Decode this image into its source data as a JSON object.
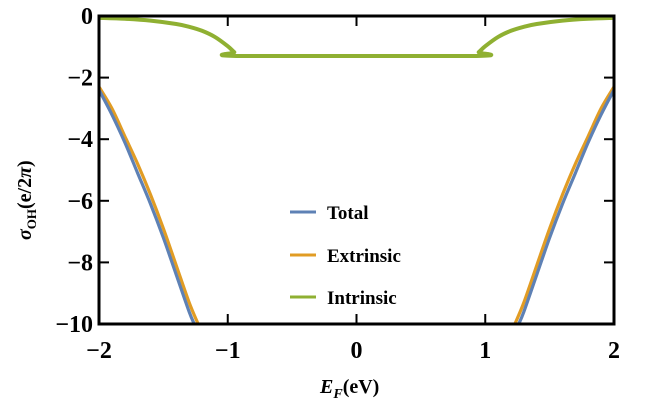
{
  "chart_data": {
    "type": "line",
    "xlabel_main": "E",
    "xlabel_sub": "F",
    "xlabel_unit": "(eV)",
    "ylabel_main": "σ",
    "ylabel_sub": "OH",
    "ylabel_unit": "(e/2",
    "ylabel_pi": "π",
    "ylabel_close": ")",
    "xlim": [
      -2,
      2
    ],
    "ylim": [
      -10,
      0
    ],
    "xticks": [
      {
        "value": -2,
        "label": "−2"
      },
      {
        "value": -1,
        "label": "−1"
      },
      {
        "value": 0,
        "label": "0"
      },
      {
        "value": 1,
        "label": "1"
      },
      {
        "value": 2,
        "label": "2"
      }
    ],
    "yticks": [
      {
        "value": 0,
        "label": "0"
      },
      {
        "value": -2,
        "label": "−2"
      },
      {
        "value": -4,
        "label": "−4"
      },
      {
        "value": -6,
        "label": "−6"
      },
      {
        "value": -8,
        "label": "−8"
      },
      {
        "value": -10,
        "label": "−10"
      }
    ],
    "legend_position": "center",
    "series": [
      {
        "name": "Total",
        "color": "#5e81b5",
        "x": [
          -2.0,
          -1.9,
          -1.8,
          -1.7,
          -1.6,
          -1.5,
          -1.4,
          -1.3,
          -1.26,
          1.26,
          1.3,
          1.4,
          1.5,
          1.6,
          1.7,
          1.8,
          1.9,
          2.0
        ],
        "y": [
          -2.4,
          -3.2,
          -4.1,
          -5.1,
          -6.1,
          -7.2,
          -8.4,
          -9.6,
          -10.0,
          -10.0,
          -9.6,
          -8.4,
          -7.2,
          -6.1,
          -5.1,
          -4.1,
          -3.2,
          -2.4
        ]
      },
      {
        "name": "Extrinsic",
        "color": "#e19c24",
        "x": [
          -2.0,
          -1.9,
          -1.8,
          -1.7,
          -1.6,
          -1.5,
          -1.4,
          -1.3,
          -1.23,
          1.23,
          1.3,
          1.4,
          1.5,
          1.6,
          1.7,
          1.8,
          1.9,
          2.0
        ],
        "y": [
          -2.3,
          -3.0,
          -3.9,
          -4.8,
          -5.8,
          -6.9,
          -8.1,
          -9.3,
          -10.0,
          -10.0,
          -9.3,
          -8.1,
          -6.9,
          -5.8,
          -4.8,
          -3.9,
          -3.0,
          -2.3
        ]
      },
      {
        "name": "Intrinsic",
        "color": "#8fb032",
        "x": [
          -2.0,
          -1.8,
          -1.6,
          -1.4,
          -1.3,
          -1.2,
          -1.1,
          -1.0,
          -0.95,
          -0.9,
          0.9,
          0.95,
          1.0,
          1.1,
          1.2,
          1.3,
          1.4,
          1.6,
          1.8,
          2.0
        ],
        "y": [
          -0.06,
          -0.09,
          -0.15,
          -0.26,
          -0.35,
          -0.48,
          -0.68,
          -0.98,
          -1.17,
          -1.3,
          -1.3,
          -1.17,
          -0.98,
          -0.68,
          -0.48,
          -0.35,
          -0.26,
          -0.15,
          -0.09,
          -0.06
        ]
      }
    ]
  }
}
